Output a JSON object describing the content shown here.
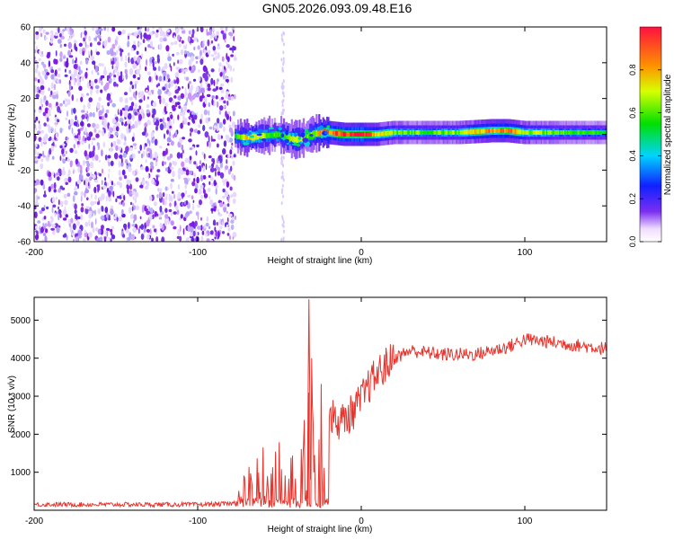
{
  "title": "GN05.2026.093.09.48.E16",
  "chart_data": [
    {
      "type": "heatmap",
      "title": "GN05.2026.093.09.48.E16",
      "xlabel": "Height of straight line (km)",
      "ylabel": "Frequency (Hz)",
      "xlim": [
        -200,
        150
      ],
      "ylim": [
        -60,
        60
      ],
      "xticks": [
        -200,
        -100,
        0,
        100
      ],
      "yticks": [
        -60,
        -40,
        -20,
        0,
        20,
        40,
        60
      ],
      "colorbar": {
        "label": "Normalized spectral amplitude",
        "range": [
          0.0,
          1.0
        ],
        "ticks": [
          "0.0",
          "0.2",
          "0.4",
          "0.6",
          "0.8"
        ]
      },
      "noise_region_x": [
        -200,
        -77
      ],
      "ridge": {
        "x": [
          -77,
          -70,
          -60,
          -50,
          -45,
          -40,
          -35,
          -30,
          -25,
          -20,
          -10,
          0,
          10,
          20,
          40,
          60,
          80,
          90,
          100,
          120,
          150
        ],
        "frequency": [
          -1,
          -2,
          -1,
          0,
          -2,
          -3,
          -2,
          0,
          1,
          1,
          0,
          0,
          0,
          1,
          1,
          1,
          2,
          2,
          1,
          1,
          1
        ],
        "amplitude": [
          0.5,
          0.75,
          0.65,
          0.55,
          0.7,
          0.75,
          0.65,
          0.6,
          0.85,
          0.9,
          0.95,
          1.0,
          0.8,
          0.65,
          0.6,
          0.65,
          0.85,
          0.9,
          0.7,
          0.6,
          0.55
        ]
      }
    },
    {
      "type": "line",
      "xlabel": "Height of straight line (km)",
      "ylabel": "SNR (10 * v/v)",
      "xlim": [
        -200,
        150
      ],
      "ylim": [
        0,
        5600
      ],
      "xticks": [
        -200,
        -100,
        0,
        100
      ],
      "yticks": [
        1000,
        2000,
        3000,
        4000,
        5000
      ],
      "series": [
        {
          "name": "SNR",
          "color": "#e8342c",
          "x": [
            -200,
            -180,
            -160,
            -140,
            -120,
            -100,
            -80,
            -77,
            -75,
            -70,
            -65,
            -60,
            -55,
            -50,
            -45,
            -40,
            -35,
            -32,
            -30,
            -28,
            -25,
            -20,
            -15,
            -10,
            -5,
            0,
            5,
            10,
            15,
            20,
            25,
            30,
            40,
            50,
            60,
            70,
            80,
            90,
            95,
            100,
            110,
            120,
            130,
            140,
            150
          ],
          "y": [
            150,
            150,
            150,
            150,
            150,
            150,
            170,
            200,
            300,
            700,
            900,
            1000,
            800,
            1100,
            1000,
            900,
            1500,
            3500,
            2000,
            1200,
            2000,
            2600,
            2300,
            2400,
            2600,
            2900,
            3300,
            3600,
            3800,
            4000,
            4100,
            4200,
            4150,
            4100,
            4100,
            4100,
            4200,
            4300,
            4400,
            4500,
            4450,
            4400,
            4350,
            4300,
            4250
          ]
        }
      ]
    }
  ]
}
